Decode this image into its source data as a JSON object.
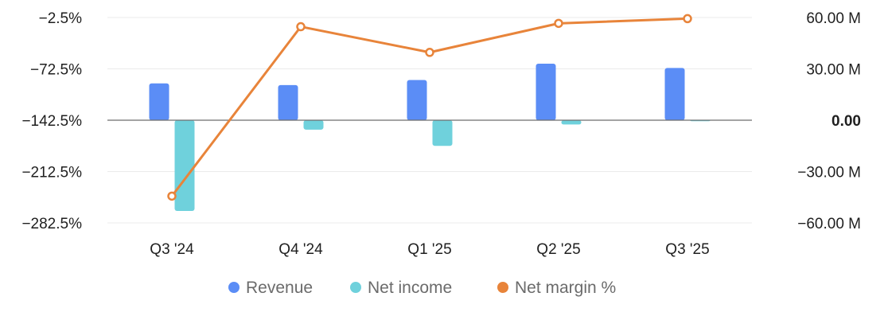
{
  "chart_data": {
    "type": "bar",
    "categories": [
      "Q3 '24",
      "Q4 '24",
      "Q1 '25",
      "Q2 '25",
      "Q3 '25"
    ],
    "series": [
      {
        "name": "Revenue",
        "type": "bar",
        "axis": "right",
        "color": "#5B8DF6",
        "values": [
          21.5,
          20.5,
          23.5,
          33.0,
          30.5
        ]
      },
      {
        "name": "Net income",
        "type": "bar",
        "axis": "right",
        "color": "#6FD1DC",
        "values": [
          -53.0,
          -5.5,
          -15.0,
          -2.5,
          -0.6
        ]
      },
      {
        "name": "Net margin %",
        "type": "line",
        "axis": "left",
        "color": "#E8843A",
        "values": [
          -246.0,
          -15.0,
          -50.0,
          -10.5,
          -4.0
        ]
      }
    ],
    "left_axis": {
      "ticks": [
        -2.5,
        -72.5,
        -142.5,
        -212.5,
        -282.5
      ],
      "tick_labels": [
        "−2.5%",
        "−72.5%",
        "−142.5%",
        "−212.5%",
        "−282.5%"
      ],
      "ylim": [
        -282.5,
        -2.5
      ]
    },
    "right_axis": {
      "ticks": [
        60,
        30,
        0,
        -30,
        -60
      ],
      "tick_labels": [
        "60.00 M",
        "30.00 M",
        "0.00",
        "−30.00 M",
        "−60.00 M"
      ],
      "ylim": [
        -60,
        60
      ],
      "unit": "M"
    },
    "grid": true,
    "legend": {
      "placement": "bottom",
      "entries": [
        "Revenue",
        "Net income",
        "Net margin %"
      ]
    }
  }
}
